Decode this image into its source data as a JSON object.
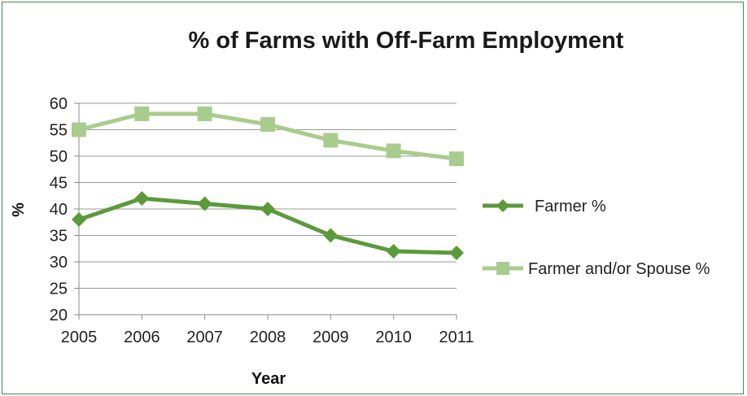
{
  "chart_data": {
    "type": "line",
    "title": "% of Farms with Off-Farm Employment",
    "xlabel": "Year",
    "ylabel": "%",
    "x": [
      "2005",
      "2006",
      "2007",
      "2008",
      "2009",
      "2010",
      "2011"
    ],
    "ylim": [
      20,
      60
    ],
    "yticks": [
      20,
      25,
      30,
      35,
      40,
      45,
      50,
      55,
      60
    ],
    "grid": "horizontal",
    "legend_position": "right",
    "series": [
      {
        "name": "Farmer %",
        "values": [
          38,
          42,
          41,
          40,
          35,
          32,
          31.7
        ],
        "marker": "diamond",
        "color": "#5b9a3b"
      },
      {
        "name": "Farmer and/or Spouse %",
        "values": [
          55,
          58,
          58,
          56,
          53,
          51,
          49.5
        ],
        "marker": "square",
        "color": "#a8cc8e"
      }
    ]
  }
}
